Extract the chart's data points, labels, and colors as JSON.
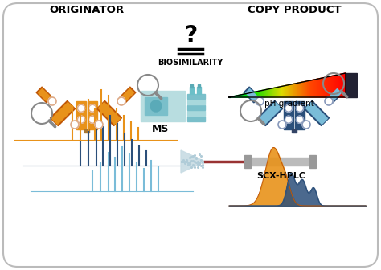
{
  "bg_color": "#ffffff",
  "border_color": "#bbbbbb",
  "originator_text": "ORIGINATOR",
  "copy_product_text": "COPY PRODUCT",
  "biosimilarity_text": "BIOSIMILARITY",
  "ms_text": "MS",
  "ph_gradient_text": "pH gradient",
  "scx_hplc_text": "SCX-HPLC",
  "orange": "#E8921A",
  "dark_orange": "#C05808",
  "blue_dark": "#2B4F7A",
  "blue_mid": "#3D6FA0",
  "blue_light": "#7ABCD8",
  "teal_light": "#A8D8DC",
  "teal_mid": "#6BBFC8",
  "teal_dark": "#3A9AAA",
  "gray": "#999999",
  "dark_gray": "#555555",
  "red_tube": "#993333"
}
